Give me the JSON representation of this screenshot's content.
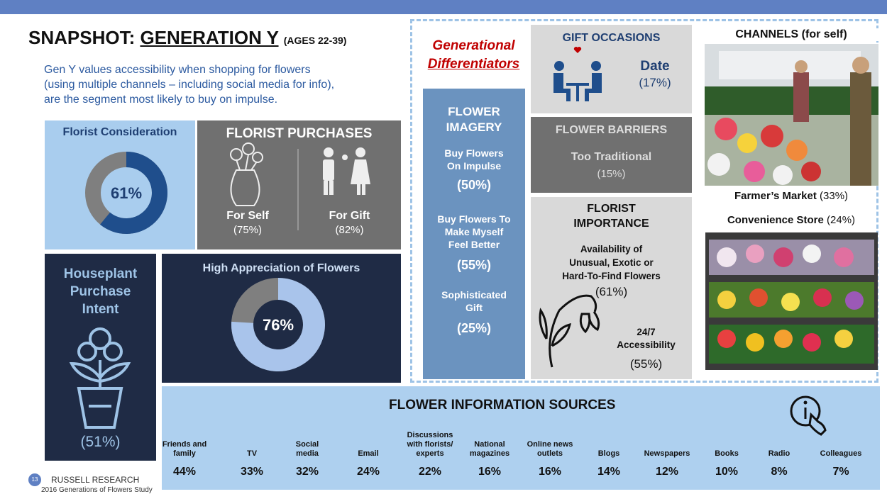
{
  "header": {
    "title": "SNAPSHOT:",
    "title_underlined": "GENERATION Y",
    "ages": "(AGES 22-39)",
    "intro": [
      "Gen Y values accessibility when shopping for flowers",
      "(using multiple channels – including social media for info),",
      "are the segment most likely to buy on impulse."
    ]
  },
  "florist_consideration": {
    "title": "Florist Consideration",
    "value": 61,
    "label": "61%"
  },
  "florist_purchases": {
    "title": "FLORIST PURCHASES",
    "items": [
      {
        "label": "For Self",
        "value": "(75%)"
      },
      {
        "label": "For Gift",
        "value": "(82%)"
      }
    ]
  },
  "houseplant": {
    "title": [
      "Houseplant",
      "Purchase",
      "Intent"
    ],
    "value": "(51%)"
  },
  "appreciation": {
    "title": "High Appreciation of Flowers",
    "value": 76,
    "label": "76%"
  },
  "differentiators": {
    "title": [
      "Generational",
      "Differentiators"
    ]
  },
  "flower_imagery": {
    "title": [
      "FLOWER",
      "IMAGERY"
    ],
    "items": [
      {
        "label": [
          "Buy Flowers",
          "On Impulse"
        ],
        "value": "(50%)"
      },
      {
        "label": [
          "Buy Flowers To",
          "Make Myself",
          "Feel Better"
        ],
        "value": "(55%)"
      },
      {
        "label": [
          "Sophisticated",
          "Gift"
        ],
        "value": "(25%)"
      }
    ]
  },
  "gift_occasions": {
    "title": "GIFT OCCASIONS",
    "label": "Date",
    "value": "(17%)"
  },
  "flower_barriers": {
    "title": "FLOWER BARRIERS",
    "label": "Too Traditional",
    "value": "(15%)"
  },
  "florist_importance": {
    "title": [
      "FLORIST",
      "IMPORTANCE"
    ],
    "items": [
      {
        "label": [
          "Availability of",
          "Unusual, Exotic or",
          "Hard-To-Find Flowers"
        ],
        "value": "(61%)"
      },
      {
        "label": [
          "24/7",
          "Accessibility"
        ],
        "value": "(55%)"
      }
    ]
  },
  "channels": {
    "title": "CHANNELS (for self)",
    "items": [
      {
        "label": "Farmer’s Market",
        "value": "(33%)"
      },
      {
        "label": "Convenience Store",
        "value": "(24%)"
      }
    ]
  },
  "sources": {
    "title": "FLOWER INFORMATION SOURCES",
    "items": [
      {
        "label": [
          "Friends and",
          "family"
        ],
        "value": "44%"
      },
      {
        "label": [
          "TV"
        ],
        "value": "33%"
      },
      {
        "label": [
          "Social",
          "media"
        ],
        "value": "32%"
      },
      {
        "label": [
          "Email"
        ],
        "value": "24%"
      },
      {
        "label": [
          "Discussions",
          "with florists/",
          "experts"
        ],
        "value": "22%"
      },
      {
        "label": [
          "National",
          "magazines"
        ],
        "value": "16%"
      },
      {
        "label": [
          "Online news",
          "outlets"
        ],
        "value": "16%"
      },
      {
        "label": [
          "Blogs"
        ],
        "value": "14%"
      },
      {
        "label": [
          "Newspapers"
        ],
        "value": "12%"
      },
      {
        "label": [
          "Books"
        ],
        "value": "10%"
      },
      {
        "label": [
          "Radio"
        ],
        "value": "8%"
      },
      {
        "label": [
          "Colleagues"
        ],
        "value": "7%"
      }
    ]
  },
  "footer": {
    "page": "13",
    "company": "RUSSELL RESEARCH",
    "study": "2016 Generations of Flowers Study"
  }
}
